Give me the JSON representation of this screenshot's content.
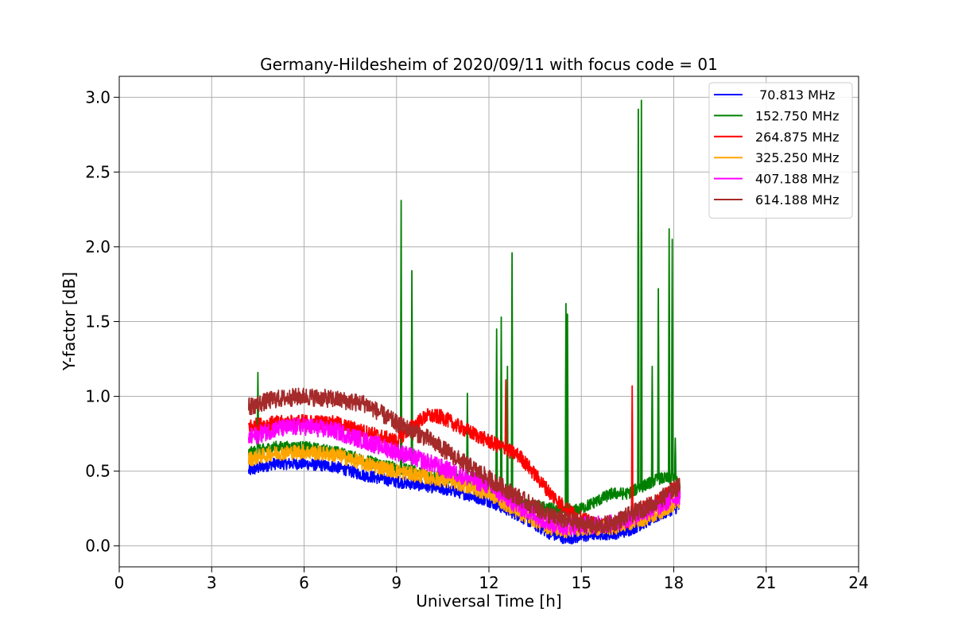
{
  "chart_data": {
    "type": "line",
    "title": "Germany-Hildesheim of 2020/09/11 with focus code = 01",
    "xlabel": "Universal Time [h]",
    "ylabel": "Y-factor [dB]",
    "xlim": [
      0,
      24
    ],
    "ylim": [
      -0.14,
      3.14
    ],
    "xticks": [
      0,
      3,
      6,
      9,
      12,
      15,
      18,
      21,
      24
    ],
    "yticks": [
      0.0,
      0.5,
      1.0,
      1.5,
      2.0,
      2.5,
      3.0
    ],
    "xtick_labels": [
      "0",
      "3",
      "6",
      "9",
      "12",
      "15",
      "18",
      "21",
      "24"
    ],
    "ytick_labels": [
      "0.0",
      "0.5",
      "1.0",
      "1.5",
      "2.0",
      "2.5",
      "3.0"
    ],
    "grid": true,
    "legend_position": "top-right",
    "series": [
      {
        "name": " 70.813 MHz",
        "color": "#0000ff",
        "noise": 0.04,
        "x": [
          4.2,
          5.0,
          6.0,
          7.0,
          8.0,
          9.0,
          10.0,
          11.0,
          12.0,
          13.0,
          14.0,
          14.5,
          15.0,
          15.5,
          16.0,
          16.5,
          17.0,
          17.5,
          18.0,
          18.2
        ],
        "y": [
          0.5,
          0.55,
          0.55,
          0.53,
          0.47,
          0.43,
          0.4,
          0.36,
          0.3,
          0.2,
          0.08,
          0.05,
          0.06,
          0.08,
          0.08,
          0.1,
          0.15,
          0.2,
          0.25,
          0.26
        ],
        "spikes": []
      },
      {
        "name": "152.750 MHz",
        "color": "#008000",
        "noise": 0.04,
        "x": [
          4.2,
          5.0,
          6.0,
          7.0,
          8.0,
          9.0,
          10.0,
          11.0,
          12.0,
          13.0,
          14.0,
          14.5,
          15.0,
          15.5,
          16.0,
          16.5,
          17.0,
          17.5,
          18.0,
          18.2
        ],
        "y": [
          0.62,
          0.66,
          0.66,
          0.63,
          0.57,
          0.52,
          0.48,
          0.44,
          0.38,
          0.28,
          0.25,
          0.22,
          0.25,
          0.3,
          0.35,
          0.35,
          0.4,
          0.45,
          0.45,
          0.4
        ],
        "spikes": [
          [
            4.5,
            1.16
          ],
          [
            9.15,
            2.31
          ],
          [
            9.5,
            1.84
          ],
          [
            11.3,
            1.02
          ],
          [
            12.25,
            1.45
          ],
          [
            12.4,
            1.53
          ],
          [
            12.6,
            1.2
          ],
          [
            12.75,
            1.96
          ],
          [
            14.5,
            1.62
          ],
          [
            14.55,
            1.55
          ],
          [
            16.85,
            2.92
          ],
          [
            16.95,
            2.98
          ],
          [
            17.3,
            1.2
          ],
          [
            17.5,
            1.72
          ],
          [
            17.85,
            2.12
          ],
          [
            17.95,
            2.05
          ],
          [
            18.05,
            0.72
          ]
        ]
      },
      {
        "name": "264.875 MHz",
        "color": "#ff0000",
        "noise": 0.05,
        "x": [
          4.2,
          5.0,
          6.0,
          7.0,
          8.0,
          9.0,
          9.5,
          10.0,
          10.5,
          11.0,
          12.0,
          13.0,
          14.0,
          14.5,
          15.0,
          15.5,
          16.0,
          16.5,
          17.0,
          17.5,
          18.0,
          18.2
        ],
        "y": [
          0.8,
          0.82,
          0.83,
          0.82,
          0.76,
          0.7,
          0.8,
          0.87,
          0.86,
          0.8,
          0.7,
          0.6,
          0.35,
          0.25,
          0.18,
          0.14,
          0.13,
          0.17,
          0.25,
          0.3,
          0.38,
          0.38
        ],
        "spikes": [
          [
            12.55,
            1.11
          ],
          [
            16.65,
            1.07
          ]
        ]
      },
      {
        "name": "325.250 MHz",
        "color": "#ffa500",
        "noise": 0.05,
        "x": [
          4.2,
          5.0,
          6.0,
          7.0,
          8.0,
          9.0,
          10.0,
          11.0,
          12.0,
          13.0,
          14.0,
          14.5,
          15.0,
          15.5,
          16.0,
          16.5,
          17.0,
          17.5,
          18.0,
          18.2
        ],
        "y": [
          0.58,
          0.62,
          0.63,
          0.61,
          0.55,
          0.5,
          0.46,
          0.42,
          0.35,
          0.22,
          0.12,
          0.1,
          0.12,
          0.12,
          0.12,
          0.15,
          0.18,
          0.22,
          0.28,
          0.3
        ],
        "spikes": []
      },
      {
        "name": "407.188 MHz",
        "color": "#ff00ff",
        "noise": 0.06,
        "x": [
          4.2,
          5.0,
          6.0,
          7.0,
          8.0,
          9.0,
          10.0,
          11.0,
          12.0,
          13.0,
          14.0,
          14.5,
          15.0,
          15.5,
          16.0,
          16.5,
          17.0,
          17.5,
          18.0,
          18.2
        ],
        "y": [
          0.72,
          0.78,
          0.8,
          0.77,
          0.7,
          0.63,
          0.56,
          0.48,
          0.4,
          0.26,
          0.15,
          0.13,
          0.14,
          0.14,
          0.15,
          0.18,
          0.22,
          0.26,
          0.32,
          0.34
        ],
        "spikes": []
      },
      {
        "name": "614.188 MHz",
        "color": "#a52a2a",
        "noise": 0.06,
        "x": [
          4.2,
          5.0,
          6.0,
          7.0,
          8.0,
          9.0,
          10.0,
          11.0,
          12.0,
          13.0,
          14.0,
          14.5,
          15.0,
          15.5,
          16.0,
          16.5,
          17.0,
          17.5,
          18.0,
          18.2
        ],
        "y": [
          0.93,
          0.98,
          1.0,
          0.98,
          0.95,
          0.82,
          0.72,
          0.58,
          0.45,
          0.32,
          0.2,
          0.17,
          0.15,
          0.13,
          0.15,
          0.2,
          0.25,
          0.3,
          0.38,
          0.4
        ],
        "spikes": []
      }
    ]
  }
}
